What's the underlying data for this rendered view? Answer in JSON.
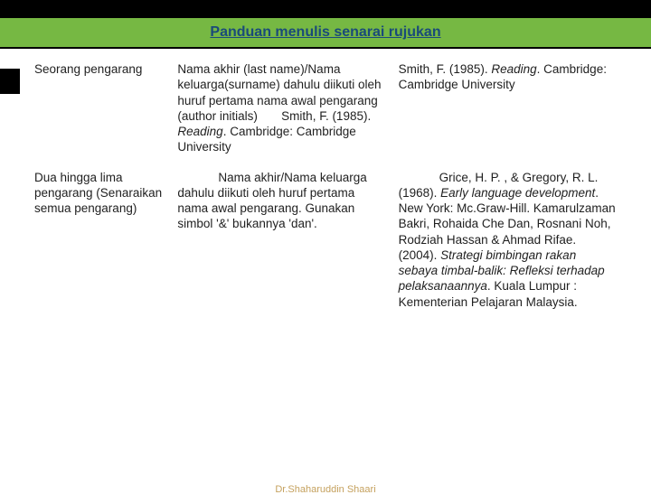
{
  "title": "Panduan menulis senarai rujukan",
  "table": {
    "rows": [
      {
        "col1": "Seorang pengarang",
        "col2_plain_a": "Nama akhir (last name)/Nama keluarga(surname) dahulu diikuti oleh huruf pertama nama awal pengarang (author initials)       Smith, F. (1985). ",
        "col2_italic": "Reading",
        "col2_plain_b": ". Cambridge: Cambridge University",
        "col3_plain_a": "Smith, F. (1985). ",
        "col3_italic": "Reading",
        "col3_plain_b": ". Cambridge: Cambridge University"
      },
      {
        "col1": "Dua hingga lima pengarang (Senaraikan semua pengarang)",
        "col2_plain_a": "            Nama akhir/Nama keluarga dahulu diikuti oleh huruf pertama nama awal pengarang. Gunakan simbol '&' bukannya 'dan'.",
        "col2_italic": "",
        "col2_plain_b": "",
        "col3_plain_a": "            Grice, H. P. , & Gregory, R. L. (1968). ",
        "col3_italic": "Early language development",
        "col3_plain_b": ". New York: Mc.Graw-Hill. Kamarulzaman Bakri, Rohaida Che Dan, Rosnani Noh, Rodziah Hassan & Ahmad Rifae. (2004). ",
        "col3_italic2": "Strategi bimbingan rakan sebaya timbal-balik: Refleksi terhadap pelaksanaannya",
        "col3_plain_c": ". Kuala Lumpur : Kementerian Pelajaran Malaysia."
      }
    ]
  },
  "footer": "Dr.Shaharuddin Shaari",
  "colors": {
    "title_bg": "#76b843",
    "title_fg": "#1a4a7a",
    "footer_fg": "#c5a15e",
    "body_bg": "#ffffff"
  },
  "typography": {
    "title_fontsize": 16,
    "body_fontsize": 13.5,
    "footer_fontsize": 11
  }
}
